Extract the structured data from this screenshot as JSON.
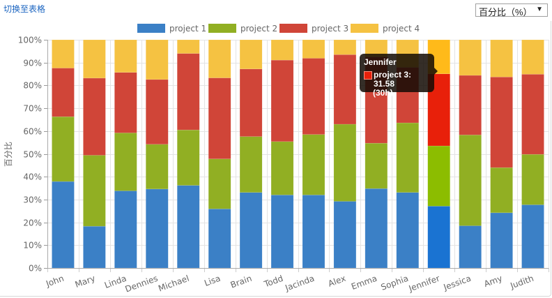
{
  "toolbar": {
    "switch_to_table_label": "切换至表格",
    "mode_select_value": "百分比（%）",
    "mode_select_arrow": "▼"
  },
  "tooltip": {
    "title": "Jennifer",
    "line1": "project 3: 31.58",
    "line2": "(30h)",
    "swatch_color": "#e8200a"
  },
  "highlight_category": "Jennifer",
  "chart_data": {
    "type": "bar",
    "stacked": "percent",
    "title": "",
    "xlabel": "",
    "ylabel": "百分比",
    "ylim": [
      0,
      100
    ],
    "yticks": [
      "0%",
      "10%",
      "20%",
      "30%",
      "40%",
      "50%",
      "60%",
      "70%",
      "80%",
      "90%",
      "100%"
    ],
    "grid": true,
    "legend_position": "top-center",
    "categories": [
      "John",
      "Mary",
      "Linda",
      "Dennies",
      "Michael",
      "Lisa",
      "Brain",
      "Todd",
      "Jacinda",
      "Alex",
      "Emma",
      "Sophia",
      "Jennifer",
      "Jessica",
      "Amy",
      "Judith"
    ],
    "series": [
      {
        "name": "project 1",
        "color": "#3b80c6",
        "highlight_color": "#1a73d2",
        "values": [
          37.9,
          18.3,
          33.8,
          34.6,
          36.2,
          25.9,
          33.1,
          32.0,
          32.0,
          29.2,
          34.8,
          33.1,
          27.1,
          18.5,
          24.2,
          27.7
        ]
      },
      {
        "name": "project 2",
        "color": "#91af23",
        "highlight_color": "#8cbd00",
        "values": [
          28.4,
          31.1,
          25.4,
          19.6,
          24.3,
          21.9,
          24.5,
          23.4,
          26.5,
          33.8,
          19.9,
          30.5,
          26.4,
          39.8,
          19.8,
          22.1
        ]
      },
      {
        "name": "project 3",
        "color": "#d04538",
        "highlight_color": "#e8200a",
        "values": [
          21.3,
          33.8,
          26.5,
          28.4,
          33.5,
          35.5,
          29.6,
          35.7,
          33.4,
          30.5,
          37.8,
          24.3,
          31.58,
          26.1,
          39.7,
          35.1
        ]
      },
      {
        "name": "project 4",
        "color": "#f5c242",
        "highlight_color": "#ffba1a",
        "values": [
          12.4,
          16.8,
          14.3,
          17.4,
          6.0,
          16.7,
          12.8,
          8.9,
          8.1,
          6.5,
          7.5,
          12.1,
          14.92,
          15.6,
          16.3,
          15.1
        ]
      }
    ]
  }
}
